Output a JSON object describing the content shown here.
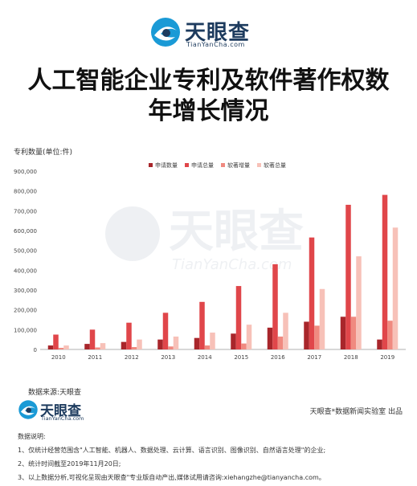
{
  "brand": {
    "name": "天眼查",
    "domain": "TianYanCha.com"
  },
  "title_line1": "人工智能企业专利及软件著作权数",
  "title_line2": "年增长情况",
  "source_text": "数据来源:天眼查",
  "credit_text": "天眼查*数据新闻实验室 出品",
  "notes": {
    "heading": "数据说明:",
    "items": [
      "1、仅统计经营范围含\"人工智能、机器人、数据处理、云计算、语言识别、图像识别、自然语言处理\"的企业;",
      "2、统计时间截至2019年11月20日;",
      "3、以上数据分析,可视化呈现由天眼查\"专业版自动产出,媒体试用请咨询:xiehangzhe@tianyancha.com。"
    ]
  },
  "colors": {
    "s1": "#a8262b",
    "s2": "#e0464a",
    "s3": "#f08a80",
    "s4": "#f7c1b8"
  },
  "chart_data": {
    "type": "bar",
    "ylabel": "专利数量(单位:件)",
    "ylim": [
      0,
      900000
    ],
    "yticks": [
      "0",
      "100,000",
      "200,000",
      "300,000",
      "400,000",
      "500,000",
      "600,000",
      "700,000",
      "800,000",
      "900,000"
    ],
    "categories": [
      "2010",
      "2011",
      "2012",
      "2013",
      "2014",
      "2015",
      "2016",
      "2017",
      "2018",
      "2019"
    ],
    "legend_position": "top-right",
    "grid": false,
    "series": [
      {
        "name": "申请数量",
        "values": [
          20000,
          28000,
          38000,
          50000,
          58000,
          80000,
          110000,
          140000,
          165000,
          50000
        ]
      },
      {
        "name": "申请总量",
        "values": [
          75000,
          100000,
          135000,
          185000,
          240000,
          320000,
          430000,
          565000,
          730000,
          780000
        ]
      },
      {
        "name": "软著增量",
        "values": [
          8000,
          10000,
          12000,
          15000,
          20000,
          30000,
          65000,
          120000,
          165000,
          145000
        ]
      },
      {
        "name": "软著总量",
        "values": [
          20000,
          32000,
          50000,
          65000,
          85000,
          125000,
          185000,
          305000,
          470000,
          615000
        ]
      }
    ]
  }
}
